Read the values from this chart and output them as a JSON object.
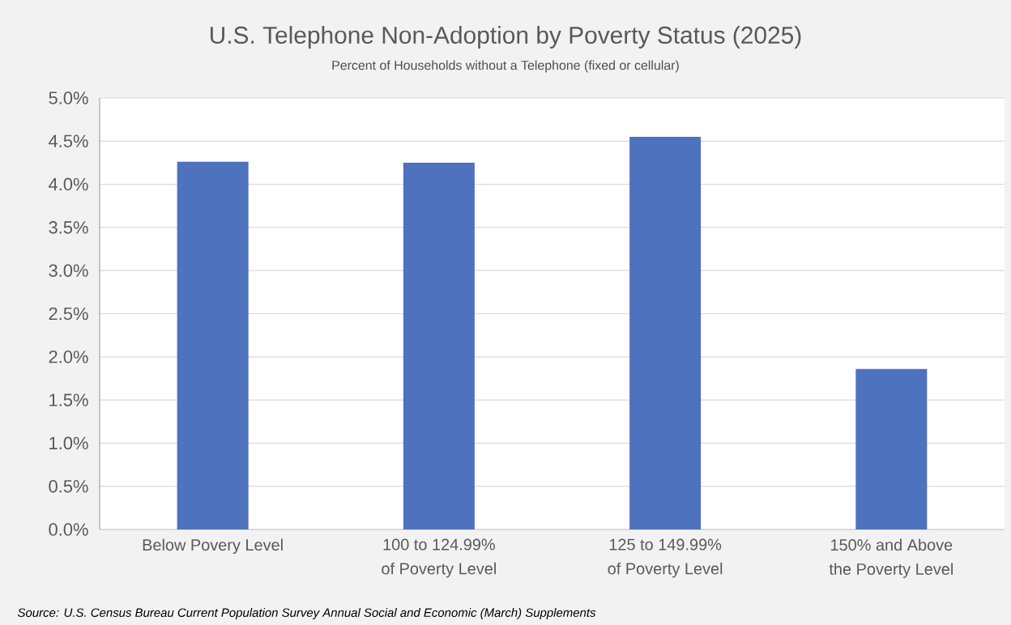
{
  "chart_data": {
    "type": "bar",
    "title": "U.S. Telephone Non-Adoption by Poverty Status (2025)",
    "subtitle": "Percent of Households without a Telephone (fixed or cellular)",
    "categories": [
      "Below Povery Level",
      "100 to 124.99% of Poverty Level",
      "125 to 149.99% of Poverty Level",
      "150% and Above the Poverty Level"
    ],
    "values": [
      4.26,
      4.25,
      4.55,
      1.86
    ],
    "color": "#4f72be",
    "ylim": [
      0,
      5
    ],
    "yticks": [
      {
        "value": 0,
        "label": "0.0%"
      },
      {
        "value": 0.5,
        "label": "0.5%"
      },
      {
        "value": 1,
        "label": "1.0%"
      },
      {
        "value": 1.5,
        "label": "1.5%"
      },
      {
        "value": 2,
        "label": "2.0%"
      },
      {
        "value": 2.5,
        "label": "2.5%"
      },
      {
        "value": 3,
        "label": "3.0%"
      },
      {
        "value": 3.5,
        "label": "3.5%"
      },
      {
        "value": 4,
        "label": "4.0%"
      },
      {
        "value": 4.5,
        "label": "4.5%"
      },
      {
        "value": 5,
        "label": "5.0%"
      }
    ],
    "grid": "y",
    "annotations": [
      "*Source: U.S. Census Bureau Current Population Survey Annual Social and Economic (March) Supplements*"
    ]
  }
}
